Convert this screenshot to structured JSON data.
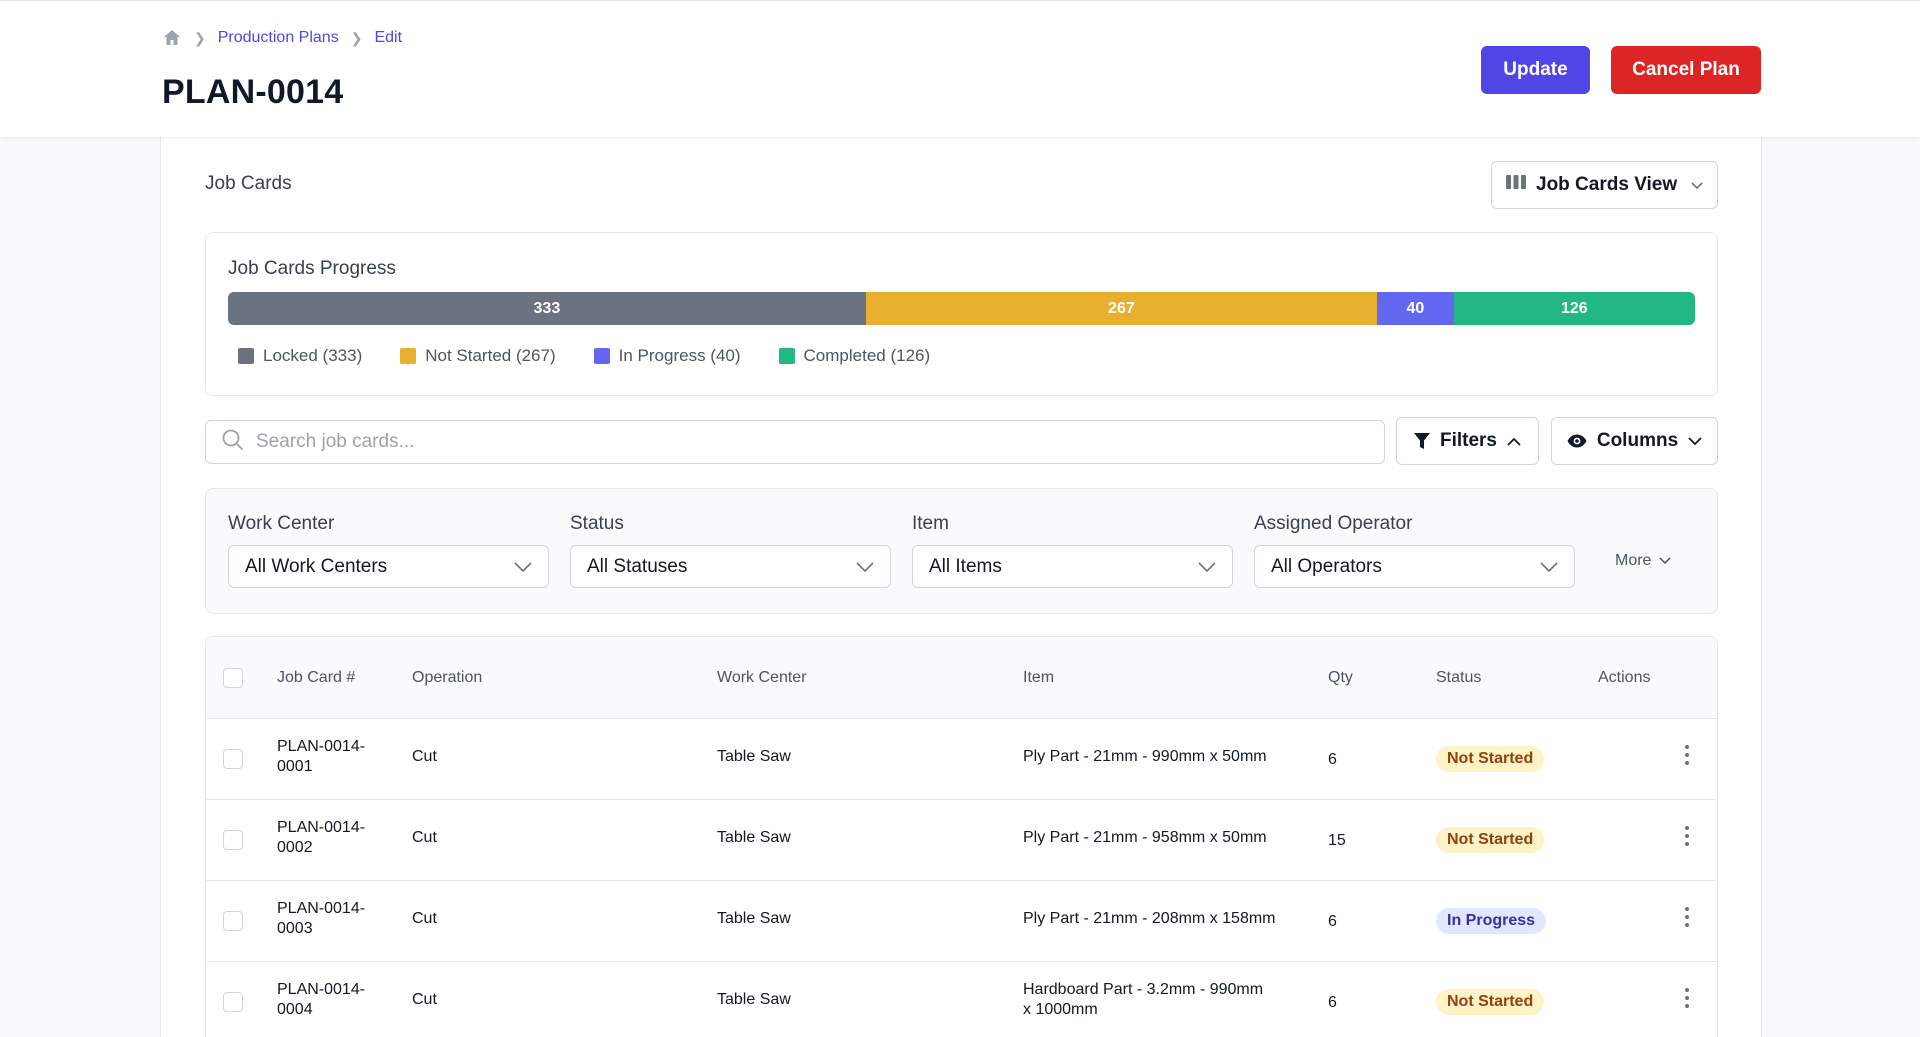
{
  "breadcrumb": {
    "items": [
      "Production Plans",
      "Edit"
    ]
  },
  "header": {
    "title": "PLAN-0014",
    "update_label": "Update",
    "cancel_label": "Cancel Plan"
  },
  "section": {
    "title": "Job Cards",
    "view_label": "Job Cards View"
  },
  "progress": {
    "title": "Job Cards Progress",
    "segments": [
      {
        "label": "Locked",
        "value": 333,
        "display": "333",
        "legend": "Locked (333)",
        "color": "#6b7280"
      },
      {
        "label": "Not Started",
        "value": 267,
        "display": "267",
        "legend": "Not Started (267)",
        "color": "#e9b02f"
      },
      {
        "label": "In Progress",
        "value": 40,
        "display": "40",
        "legend": "In Progress (40)",
        "color": "#6366f1"
      },
      {
        "label": "Completed",
        "value": 126,
        "display": "126",
        "legend": "Completed (126)",
        "color": "#22b882"
      }
    ]
  },
  "search": {
    "placeholder": "Search job cards..."
  },
  "toolbar": {
    "filters_label": "Filters",
    "columns_label": "Columns"
  },
  "filters": {
    "groups": [
      {
        "label": "Work Center",
        "value": "All Work Centers"
      },
      {
        "label": "Status",
        "value": "All Statuses"
      },
      {
        "label": "Item",
        "value": "All Items"
      },
      {
        "label": "Assigned Operator",
        "value": "All Operators"
      }
    ],
    "more_label": "More"
  },
  "table": {
    "columns": [
      "Job Card #",
      "Operation",
      "Work Center",
      "Item",
      "Qty",
      "Status",
      "Actions"
    ],
    "rows": [
      {
        "job_card_1": "PLAN-0014-",
        "job_card_2": "0001",
        "operation": "Cut",
        "work_center": "Table Saw",
        "item_1": "Ply Part - 21mm - 990mm x 50mm",
        "item_2": "",
        "qty": "6",
        "status": "Not Started"
      },
      {
        "job_card_1": "PLAN-0014-",
        "job_card_2": "0002",
        "operation": "Cut",
        "work_center": "Table Saw",
        "item_1": "Ply Part - 21mm - 958mm x 50mm",
        "item_2": "",
        "qty": "15",
        "status": "Not Started"
      },
      {
        "job_card_1": "PLAN-0014-",
        "job_card_2": "0003",
        "operation": "Cut",
        "work_center": "Table Saw",
        "item_1": "Ply Part - 21mm - 208mm x 158mm",
        "item_2": "",
        "qty": "6",
        "status": "In Progress"
      },
      {
        "job_card_1": "PLAN-0014-",
        "job_card_2": "0004",
        "operation": "Cut",
        "work_center": "Table Saw",
        "item_1": "Hardboard Part - 3.2mm - 990mm",
        "item_2": "x 1000mm",
        "qty": "6",
        "status": "Not Started"
      }
    ]
  },
  "status_colors": {
    "Not Started": {
      "bg": "#fef3c7",
      "fg": "#92400e"
    },
    "In Progress": {
      "bg": "#e0e7ff",
      "fg": "#3730a3"
    }
  }
}
